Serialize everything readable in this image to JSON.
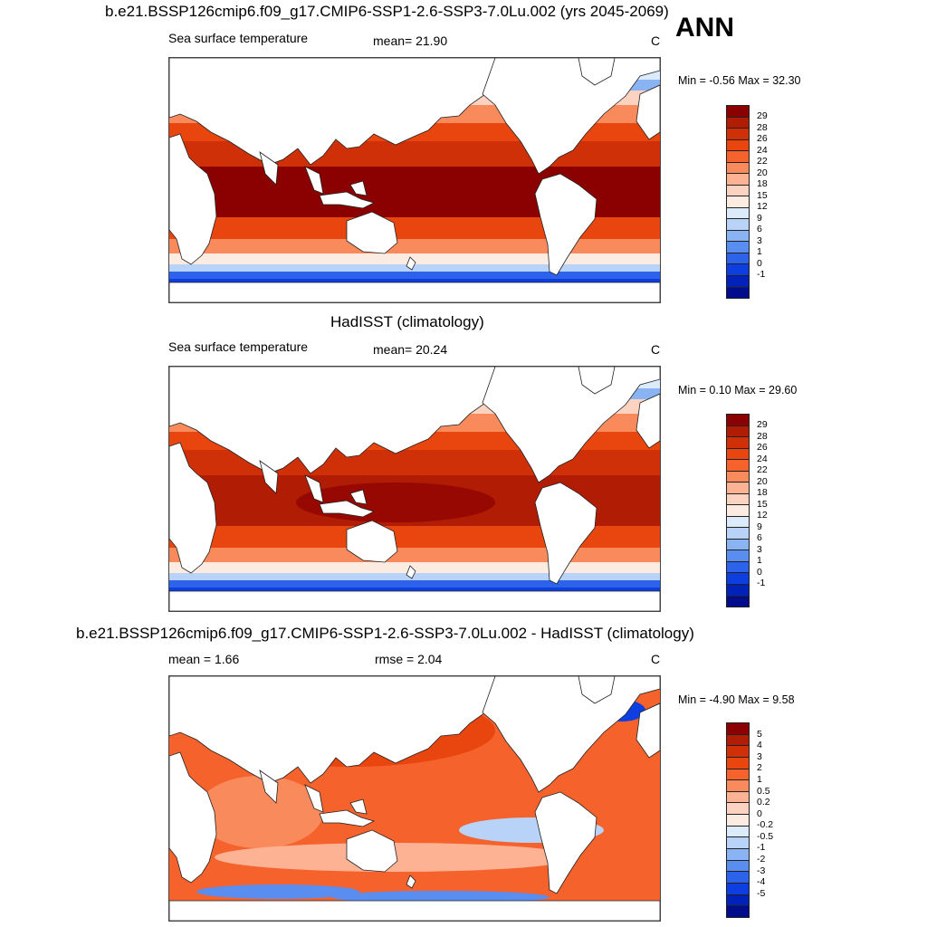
{
  "annotation": "ANN",
  "panels": [
    {
      "title": "b.e21.BSSP126cmip6.f09_g17.CMIP6-SSP1-2.6-SSP3-7.0Lu.002 (yrs 2045-2069)",
      "left_label": "Sea surface temperature",
      "mid_label": "mean=  21.90",
      "units": "C",
      "minmax": "Min =  -0.56 Max =  32.30",
      "colorbar_labels": [
        "29",
        "28",
        "26",
        "24",
        "22",
        "20",
        "18",
        "15",
        "12",
        "9",
        "6",
        "3",
        "1",
        "0",
        "-1"
      ],
      "colors": [
        "#8b0000",
        "#b01c04",
        "#cf3008",
        "#e8460e",
        "#f5622c",
        "#f98a5c",
        "#fcb293",
        "#fcd3c0",
        "#fcebe0",
        "#dcebfb",
        "#b8d2f8",
        "#8ab3f4",
        "#5a8df0",
        "#2d63ea",
        "#0d3ee0",
        "#0022b8",
        "#000c8c"
      ]
    },
    {
      "title": "HadISST (climatology)",
      "left_label": "Sea surface temperature",
      "mid_label": "mean=  20.24",
      "units": "C",
      "minmax": "Min =   0.10 Max =  29.60",
      "colorbar_labels": [
        "29",
        "28",
        "26",
        "24",
        "22",
        "20",
        "18",
        "15",
        "12",
        "9",
        "6",
        "3",
        "1",
        "0",
        "-1"
      ],
      "colors": [
        "#8b0000",
        "#b01c04",
        "#cf3008",
        "#e8460e",
        "#f5622c",
        "#f98a5c",
        "#fcb293",
        "#fcd3c0",
        "#fcebe0",
        "#dcebfb",
        "#b8d2f8",
        "#8ab3f4",
        "#5a8df0",
        "#2d63ea",
        "#0d3ee0",
        "#0022b8",
        "#000c8c"
      ]
    },
    {
      "title": "b.e21.BSSP126cmip6.f09_g17.CMIP6-SSP1-2.6-SSP3-7.0Lu.002 - HadISST (climatology)",
      "left_label": "mean =   1.66",
      "mid_label": "rmse =   2.04",
      "units": "C",
      "minmax": "Min =  -4.90 Max =   9.58",
      "colorbar_labels": [
        "5",
        "4",
        "3",
        "2",
        "1",
        "0.5",
        "0.2",
        "0",
        "-0.2",
        "-0.5",
        "-1",
        "-2",
        "-3",
        "-4",
        "-5"
      ],
      "colors": [
        "#8b0000",
        "#b01c04",
        "#cf3008",
        "#e8460e",
        "#f5622c",
        "#f98a5c",
        "#fcb293",
        "#fcd3c0",
        "#fcebe0",
        "#dcebfb",
        "#b8d2f8",
        "#8ab3f4",
        "#5a8df0",
        "#2d63ea",
        "#0d3ee0",
        "#0022b8",
        "#000c8c"
      ]
    }
  ]
}
